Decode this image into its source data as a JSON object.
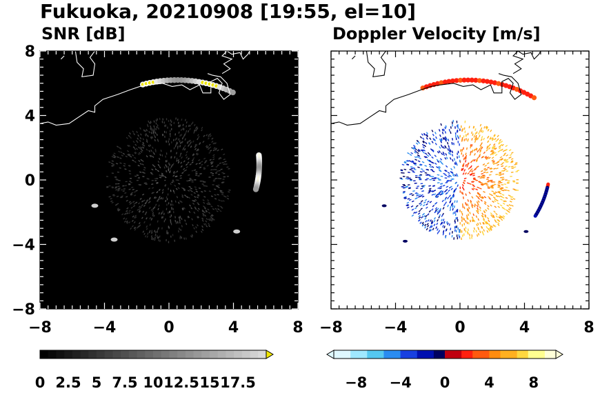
{
  "figure": {
    "title": "Fukuoka, 20210908 [19:55, el=10]"
  },
  "chart_data": [
    {
      "type": "heatmap",
      "title": "SNR [dB]",
      "xlim": [
        -8,
        8
      ],
      "ylim": [
        -8,
        8
      ],
      "x_ticks": [
        -8,
        -4,
        0,
        4,
        8
      ],
      "y_ticks": [
        -8,
        -4,
        0,
        4,
        8
      ],
      "x_tick_labels": [
        "−8",
        "−4",
        "0",
        "4",
        "8"
      ],
      "y_tick_labels": [
        "−8",
        "−4",
        "0",
        "4",
        "8"
      ],
      "background_color": "#000000",
      "coastline_color": "#ffffff",
      "colorbar": {
        "levels": [
          0,
          2.5,
          5,
          7.5,
          10,
          12.5,
          15,
          17.5
        ],
        "tick_labels": [
          "0",
          "2.5",
          "5",
          "7.5",
          "10",
          "12.5",
          "15",
          "17.5"
        ],
        "low_color": "#000000",
        "high_color": "#d8d8d8",
        "extend_color": "#f0e600"
      },
      "features": [
        {
          "kind": "noise-disk",
          "center": [
            0,
            0
          ],
          "radius_km": 3.8
        },
        {
          "kind": "echo-arc",
          "center": [
            0.5,
            -2.0
          ],
          "radius_km": 8.2,
          "angle_start_deg": 105,
          "angle_end_deg": 65
        },
        {
          "kind": "echo-arc",
          "center": [
            -0.5,
            1.0
          ],
          "radius_km": 6.1,
          "angle_start_deg": 5,
          "angle_end_deg": -15
        },
        {
          "kind": "echo-blob",
          "x": 4.2,
          "y": -3.2
        },
        {
          "kind": "echo-blob",
          "x": -4.6,
          "y": -1.6
        },
        {
          "kind": "echo-blob",
          "x": -3.4,
          "y": -3.7
        }
      ]
    },
    {
      "type": "heatmap",
      "title": "Doppler Velocity [m/s]",
      "xlim": [
        -8,
        8
      ],
      "ylim": [
        -8,
        8
      ],
      "x_ticks": [
        -8,
        -4,
        0,
        4,
        8
      ],
      "y_ticks": [
        -8,
        -4,
        0,
        4,
        8
      ],
      "x_tick_labels": [
        "−8",
        "−4",
        "0",
        "4",
        "8"
      ],
      "background_color": "#ffffff",
      "coastline_color": "#000000",
      "colorbar": {
        "levels": [
          -8,
          -4,
          0,
          4,
          8
        ],
        "tick_labels": [
          "−8",
          "−4",
          "0",
          "4",
          "8"
        ],
        "range": [
          -10,
          10
        ],
        "negative_colors": [
          "#dff8ff",
          "#9fe8ff",
          "#55c8f0",
          "#2a8cf0",
          "#1840e0",
          "#0010b0",
          "#000060"
        ],
        "positive_colors": [
          "#c00010",
          "#ff2010",
          "#ff5a10",
          "#ff8c10",
          "#ffb020",
          "#ffd840",
          "#ffff90",
          "#ffffd8"
        ]
      },
      "features": [
        {
          "kind": "velocity-disk",
          "center": [
            0,
            0
          ],
          "radius_km": 3.6
        },
        {
          "kind": "velocity-arc",
          "center": [
            0.5,
            -2.0
          ],
          "radius_km": 8.2,
          "angle_start_deg": 110,
          "angle_end_deg": 60
        },
        {
          "kind": "velocity-arc",
          "center": [
            -0.5,
            1.0
          ],
          "radius_km": 6.1,
          "angle_start_deg": -12,
          "angle_end_deg": -32
        },
        {
          "kind": "velocity-blob",
          "x": -4.7,
          "y": -1.6
        },
        {
          "kind": "velocity-blob",
          "x": 4.1,
          "y": -3.2
        },
        {
          "kind": "velocity-blob",
          "x": -3.4,
          "y": -3.8
        }
      ]
    }
  ]
}
